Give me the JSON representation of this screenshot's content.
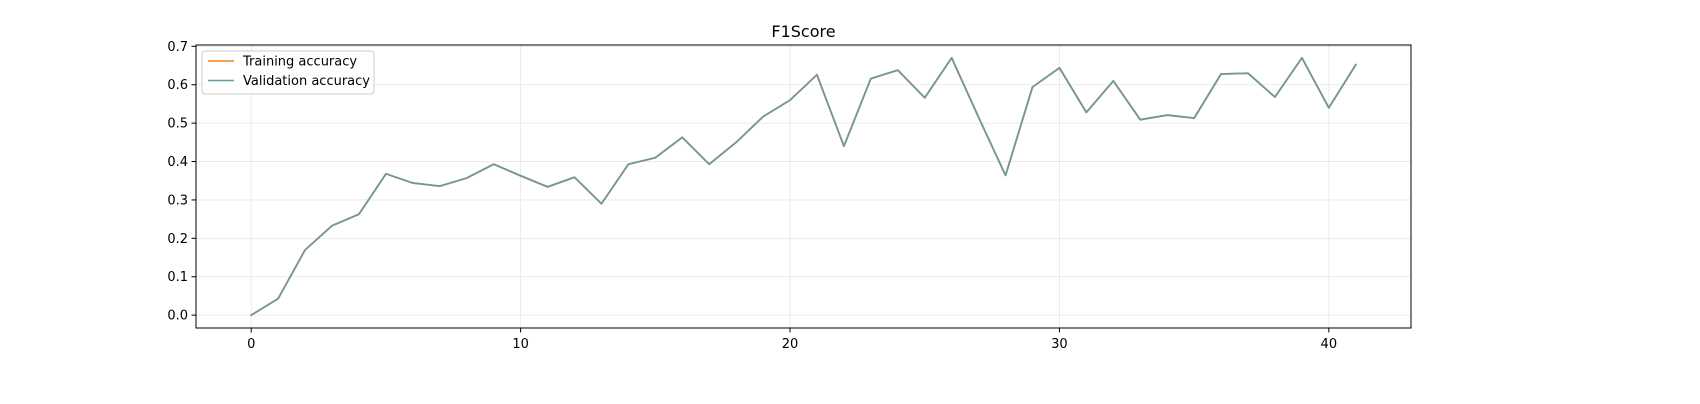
{
  "chart_data": {
    "type": "line",
    "title": "F1Score",
    "xlabel": "",
    "ylabel": "",
    "xlim": [
      -2.05,
      43.05
    ],
    "ylim": [
      -0.0335,
      0.7035
    ],
    "x_ticks": [
      0,
      10,
      20,
      30,
      40
    ],
    "y_ticks": [
      0.0,
      0.1,
      0.2,
      0.3,
      0.4,
      0.5,
      0.6,
      0.7
    ],
    "x_tick_labels": [
      "0",
      "10",
      "20",
      "30",
      "40"
    ],
    "y_tick_labels": [
      "0.0",
      "0.1",
      "0.2",
      "0.3",
      "0.4",
      "0.5",
      "0.6",
      "0.7"
    ],
    "grid": true,
    "legend_position": "upper-left",
    "x": [
      0,
      1,
      2,
      3,
      4,
      5,
      6,
      7,
      8,
      9,
      10,
      11,
      12,
      13,
      14,
      15,
      16,
      17,
      18,
      19,
      20,
      21,
      22,
      23,
      24,
      25,
      26,
      27,
      28,
      29,
      30,
      31,
      32,
      33,
      34,
      35,
      36,
      37,
      38,
      39,
      40,
      41
    ],
    "series": [
      {
        "name": "Training accuracy",
        "color": "#ff7f0e",
        "values": [
          0.0,
          0.043,
          0.17,
          0.233,
          0.263,
          0.368,
          0.344,
          0.336,
          0.357,
          0.393,
          0.363,
          0.334,
          0.359,
          0.29,
          0.393,
          0.41,
          0.463,
          0.393,
          0.45,
          0.517,
          0.56,
          0.626,
          0.44,
          0.616,
          0.638,
          0.566,
          0.67,
          0.515,
          0.364,
          0.594,
          0.644,
          0.528,
          0.61,
          0.509,
          0.521,
          0.513,
          0.628,
          0.63,
          0.568,
          0.67,
          0.54,
          0.652
        ]
      },
      {
        "name": "Validation accuracy",
        "color": "#5f9ea0",
        "values": [
          0.0,
          0.043,
          0.17,
          0.233,
          0.263,
          0.368,
          0.344,
          0.336,
          0.357,
          0.393,
          0.363,
          0.334,
          0.359,
          0.29,
          0.393,
          0.41,
          0.463,
          0.393,
          0.45,
          0.517,
          0.56,
          0.626,
          0.44,
          0.616,
          0.638,
          0.566,
          0.67,
          0.515,
          0.364,
          0.594,
          0.644,
          0.528,
          0.61,
          0.509,
          0.521,
          0.513,
          0.628,
          0.63,
          0.568,
          0.67,
          0.54,
          0.652
        ]
      }
    ]
  }
}
